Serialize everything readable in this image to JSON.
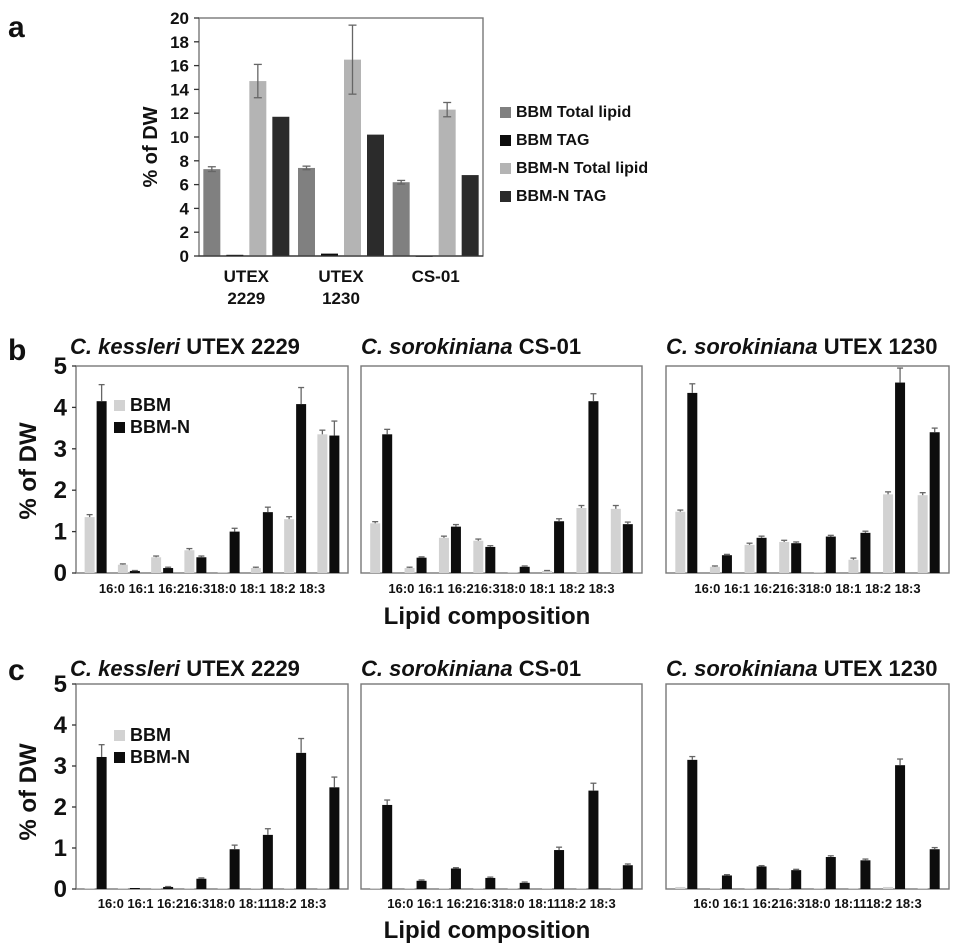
{
  "panel_labels": {
    "a": "a",
    "b": "b",
    "c": "c"
  },
  "colors": {
    "bbm_total": "#808080",
    "bbm_tag": "#0d0d0d",
    "bbmn_total": "#b4b4b4",
    "bbmn_tag": "#2b2b2b",
    "bbm": "#d2d2d2",
    "bbmn": "#0d0d0d",
    "error_bar": "#666666"
  },
  "chart_data": [
    {
      "panel": "a",
      "type": "bar",
      "ylabel": "% of DW",
      "ylim": [
        0,
        20
      ],
      "yticks": [
        "0",
        "2",
        "4",
        "6",
        "8",
        "10",
        "12",
        "14",
        "16",
        "18",
        "20"
      ],
      "categories": [
        "UTEX 2229",
        "UTEX 1230",
        "CS-01"
      ],
      "category_lines": [
        [
          "UTEX",
          "2229"
        ],
        [
          "UTEX",
          "1230"
        ],
        [
          "CS-01"
        ]
      ],
      "legend_position": "right",
      "series": [
        {
          "name": "BBM Total lipid",
          "color_key": "bbm_total",
          "values": [
            7.3,
            7.4,
            6.2
          ],
          "errors": [
            0.2,
            0.15,
            0.15
          ]
        },
        {
          "name": "BBM TAG",
          "color_key": "bbm_tag",
          "values": [
            0.1,
            0.2,
            0.0
          ],
          "errors": [
            0,
            0,
            0
          ]
        },
        {
          "name": "BBM-N Total lipid",
          "color_key": "bbmn_total",
          "values": [
            14.7,
            16.5,
            12.3
          ],
          "errors": [
            1.4,
            2.9,
            0.6
          ]
        },
        {
          "name": "BBM-N TAG",
          "color_key": "bbmn_tag",
          "values": [
            11.7,
            10.2,
            6.8
          ],
          "errors": [
            0,
            0,
            0
          ]
        }
      ]
    },
    {
      "panel": "b",
      "type": "bar",
      "ylabel": "% of DW",
      "xlabel": "Lipid composition",
      "ylim": [
        0,
        5
      ],
      "yticks": [
        "0",
        "1",
        "2",
        "3",
        "4",
        "5"
      ],
      "categories": [
        "16:0",
        "16:1",
        "16:2",
        "16:3",
        "18:0",
        "18:1",
        "18:2",
        "18:3"
      ],
      "xtick_text": [
        "16:0 16:1 16:216:318:0 18:1 18:2 18:3",
        "16:0 16:1 16:216:318:0 18:1 18:2 18:3",
        "16:0 16:1 16:216:318:0 18:1 18:2 18:3"
      ],
      "legend_position": "top-left",
      "legend": [
        "BBM",
        "BBM-N"
      ],
      "subplots": [
        {
          "title_italic": "C. kessleri",
          "title_rest": " UTEX 2229",
          "series": [
            {
              "name": "BBM",
              "values": [
                1.35,
                0.2,
                0.38,
                0.55,
                0.0,
                0.12,
                1.3,
                3.35
              ],
              "errors": [
                0.06,
                0.02,
                0.03,
                0.04,
                0,
                0.02,
                0.06,
                0.1
              ]
            },
            {
              "name": "BBM-N",
              "values": [
                4.15,
                0.05,
                0.12,
                0.38,
                1.0,
                1.47,
                4.08,
                3.32
              ],
              "errors": [
                0.4,
                0.01,
                0.02,
                0.03,
                0.08,
                0.12,
                0.4,
                0.35
              ]
            }
          ]
        },
        {
          "title_italic": "C. sorokiniana",
          "title_rest": " CS-01",
          "series": [
            {
              "name": "BBM",
              "values": [
                1.2,
                0.12,
                0.85,
                0.78,
                0.02,
                0.05,
                1.57,
                1.55
              ],
              "errors": [
                0.04,
                0.02,
                0.04,
                0.04,
                0,
                0.01,
                0.06,
                0.08
              ]
            },
            {
              "name": "BBM-N",
              "values": [
                3.35,
                0.37,
                1.12,
                0.63,
                0.15,
                1.25,
                4.15,
                1.18
              ],
              "errors": [
                0.12,
                0.02,
                0.05,
                0.03,
                0.02,
                0.06,
                0.18,
                0.05
              ]
            }
          ]
        },
        {
          "title_italic": "C. sorokiniana",
          "title_rest": " UTEX 1230",
          "series": [
            {
              "name": "BBM",
              "values": [
                1.48,
                0.15,
                0.68,
                0.75,
                0.02,
                0.32,
                1.9,
                1.88
              ],
              "errors": [
                0.04,
                0.02,
                0.04,
                0.04,
                0,
                0.04,
                0.06,
                0.06
              ]
            },
            {
              "name": "BBM-N",
              "values": [
                4.35,
                0.43,
                0.85,
                0.72,
                0.88,
                0.97,
                4.6,
                3.4
              ],
              "errors": [
                0.22,
                0.02,
                0.04,
                0.03,
                0.03,
                0.04,
                0.35,
                0.1
              ]
            }
          ]
        }
      ]
    },
    {
      "panel": "c",
      "type": "bar",
      "ylabel": "% of DW",
      "xlabel": "Lipid composition",
      "ylim": [
        0,
        5
      ],
      "yticks": [
        "0",
        "1",
        "2",
        "3",
        "4",
        "5"
      ],
      "categories": [
        "16:0",
        "16:1",
        "16:2",
        "16:3",
        "18:0",
        "18:1",
        "18:2",
        "18:3"
      ],
      "xtick_text": [
        "16:0 16:1 16:216:318:0 18:1118:2 18:3",
        "16:0 16:1 16:216:318:0 18:1118:2 18:3",
        "16:0 16:1 16:216:318:0 18:1118:2 18:3"
      ],
      "legend_position": "top-left",
      "legend": [
        "BBM",
        "BBM-N"
      ],
      "subplots": [
        {
          "title_italic": "C. kessleri",
          "title_rest": " UTEX 2229",
          "series": [
            {
              "name": "BBM",
              "values": [
                0.02,
                0.01,
                0.01,
                0.01,
                0.01,
                0.01,
                0.02,
                0.02
              ],
              "errors": [
                0,
                0,
                0,
                0,
                0,
                0,
                0,
                0
              ]
            },
            {
              "name": "BBM-N",
              "values": [
                3.22,
                0.02,
                0.05,
                0.25,
                0.97,
                1.32,
                3.32,
                2.48
              ],
              "errors": [
                0.3,
                0,
                0.01,
                0.02,
                0.1,
                0.15,
                0.35,
                0.25
              ]
            }
          ]
        },
        {
          "title_italic": "C. sorokiniana",
          "title_rest": " CS-01",
          "series": [
            {
              "name": "BBM",
              "values": [
                0.02,
                0.01,
                0.01,
                0.01,
                0.01,
                0.01,
                0.02,
                0.02
              ],
              "errors": [
                0,
                0,
                0,
                0,
                0,
                0,
                0,
                0
              ]
            },
            {
              "name": "BBM-N",
              "values": [
                2.05,
                0.2,
                0.5,
                0.27,
                0.15,
                0.95,
                2.4,
                0.58
              ],
              "errors": [
                0.12,
                0.02,
                0.02,
                0.02,
                0.02,
                0.07,
                0.18,
                0.03
              ]
            }
          ]
        },
        {
          "title_italic": "C. sorokiniana",
          "title_rest": " UTEX 1230",
          "series": [
            {
              "name": "BBM",
              "values": [
                0.05,
                0.01,
                0.01,
                0.01,
                0.01,
                0.01,
                0.05,
                0.02
              ],
              "errors": [
                0,
                0,
                0,
                0,
                0,
                0,
                0,
                0
              ]
            },
            {
              "name": "BBM-N",
              "values": [
                3.15,
                0.33,
                0.55,
                0.46,
                0.78,
                0.7,
                3.02,
                0.97
              ],
              "errors": [
                0.08,
                0.02,
                0.02,
                0.02,
                0.03,
                0.03,
                0.15,
                0.04
              ]
            }
          ]
        }
      ]
    }
  ]
}
